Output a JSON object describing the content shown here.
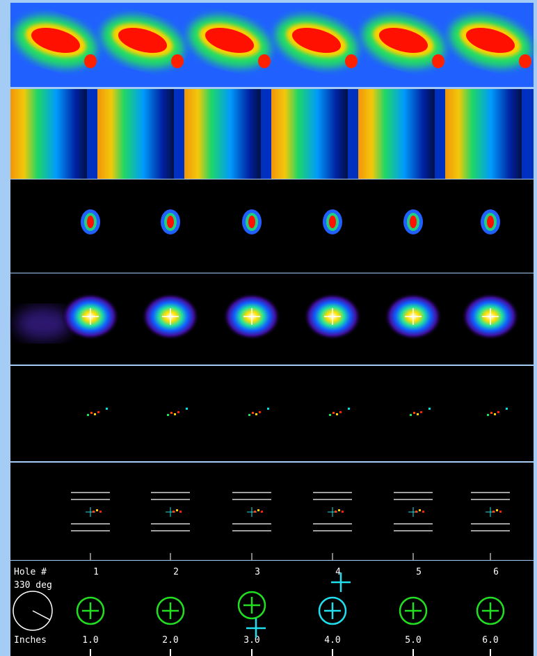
{
  "hole_label": "Hole #",
  "angle_label": "330 deg",
  "holes": [
    "1",
    "2",
    "3",
    "4",
    "5",
    "6"
  ],
  "inches_label": "Inches",
  "inches": [
    "1.0",
    "2.0",
    "3.0",
    "4.0",
    "5.0",
    "6.0"
  ]
}
